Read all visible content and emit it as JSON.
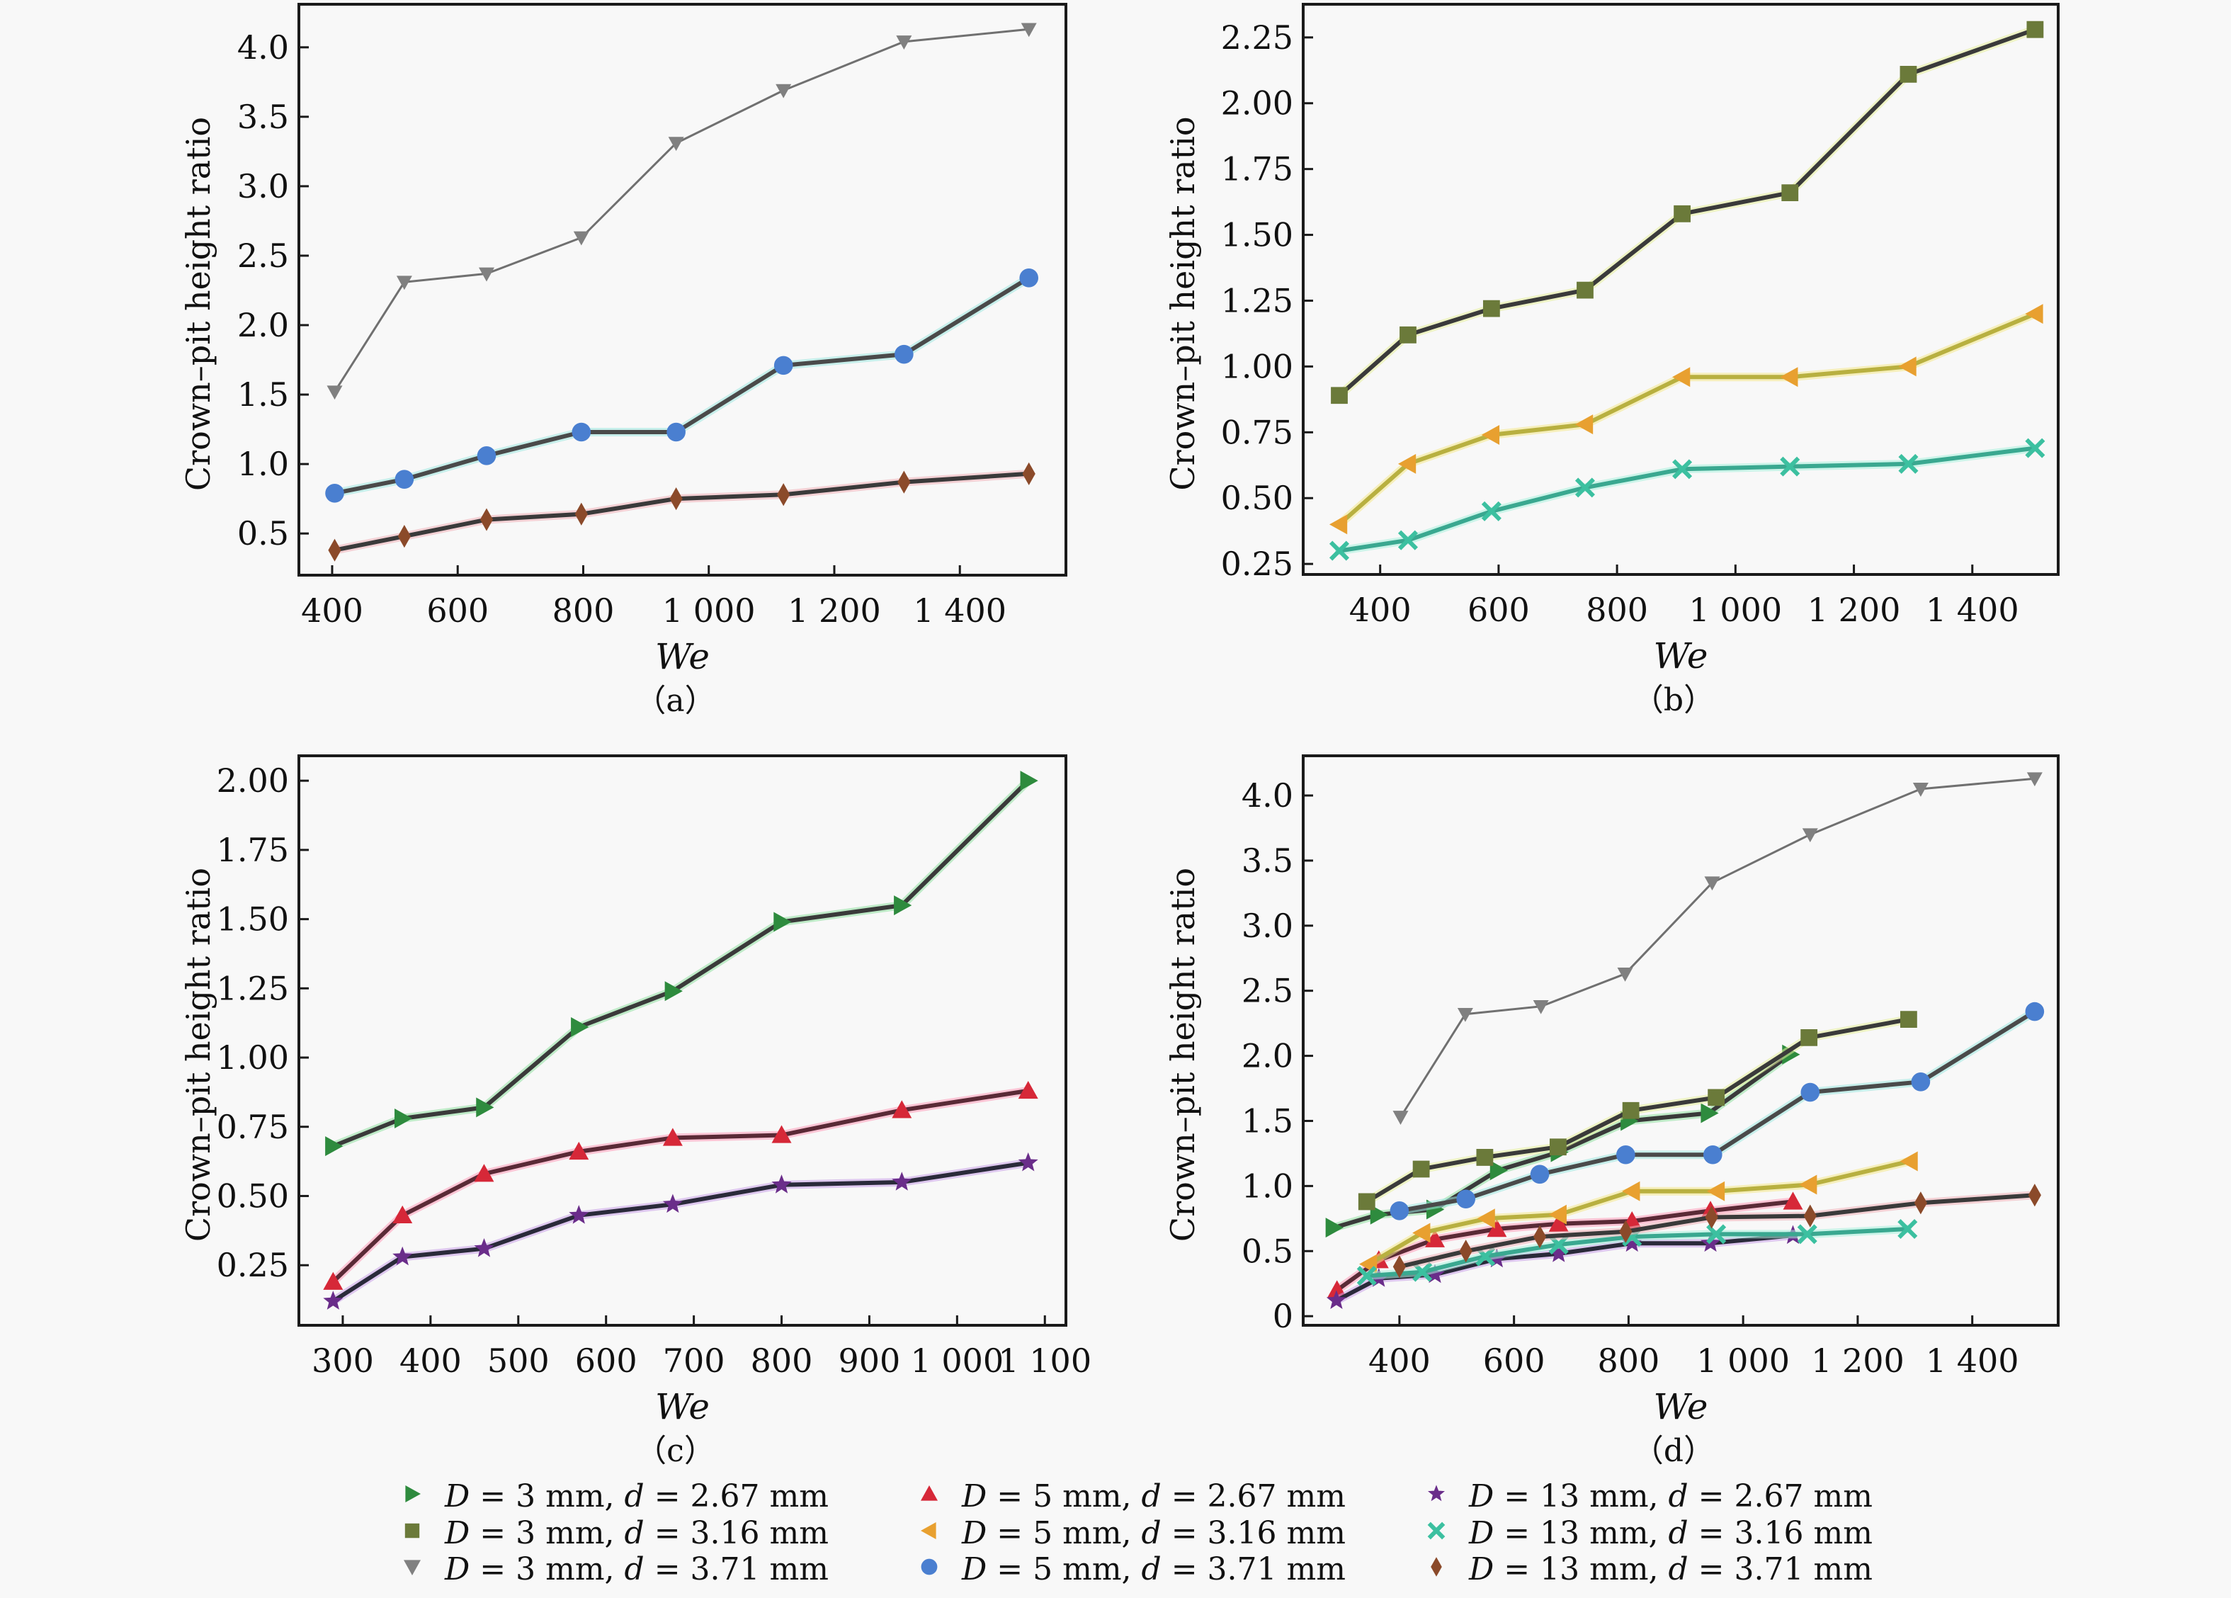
{
  "figure": {
    "legend": [
      {
        "key": "D3_d267",
        "D": "3",
        "d": "2.67",
        "marker": "triangle-right",
        "color": "#2e8b3e",
        "line": "#3a3a3a",
        "halo": "#8fe0a0"
      },
      {
        "key": "D3_d316",
        "D": "3",
        "d": "3.16",
        "marker": "square",
        "color": "#6b7a3a",
        "line": "#3a3a3a",
        "halo": "#e6ee9a"
      },
      {
        "key": "D3_d371",
        "D": "3",
        "d": "3.71",
        "marker": "triangle-down",
        "color": "#808080",
        "line": "#707070",
        "halo": "#dddddd"
      },
      {
        "key": "D5_d267",
        "D": "5",
        "d": "2.67",
        "marker": "triangle-up",
        "color": "#d62838",
        "line": "#5a2a36",
        "halo": "#ff9ab8"
      },
      {
        "key": "D5_d316",
        "D": "5",
        "d": "3.16",
        "marker": "triangle-left",
        "color": "#e8a030",
        "line": "#b8b040",
        "halo": "#f4e88a"
      },
      {
        "key": "D5_d371",
        "D": "5",
        "d": "3.71",
        "marker": "circle",
        "color": "#4a7fd0",
        "line": "#4a4a4a",
        "halo": "#9fe8e0"
      },
      {
        "key": "D13_d267",
        "D": "13",
        "d": "2.67",
        "marker": "star",
        "color": "#6a2d8a",
        "line": "#2a2a3a",
        "halo": "#c9a0e8"
      },
      {
        "key": "D13_d316",
        "D": "13",
        "d": "3.16",
        "marker": "x",
        "color": "#3cc0a0",
        "line": "#3aa890",
        "halo": "#a8f0dc"
      },
      {
        "key": "D13_d371",
        "D": "13",
        "d": "3.71",
        "marker": "diamond",
        "color": "#8b4a2a",
        "line": "#3a3a3a",
        "halo": "#f0b0b8"
      }
    ],
    "legend_text": {
      "D_symbol": "D",
      "d_symbol": "d",
      "equals": " = ",
      "unit": " mm",
      "separator": ", "
    }
  },
  "chart_data": [
    {
      "panel": "a",
      "type": "line",
      "title": "",
      "caption": "（a）",
      "xlabel": "We",
      "ylabel": "Crown–pit height ratio",
      "xlim": [
        347,
        1569
      ],
      "ylim": [
        0.2,
        4.31
      ],
      "xticks": [
        400,
        600,
        800,
        1000,
        1200,
        1400
      ],
      "xtick_labels": [
        "400",
        "600",
        "800",
        "1 000",
        "1 200",
        "1 400"
      ],
      "yticks": [
        0.5,
        1.0,
        1.5,
        2.0,
        2.5,
        3.0,
        3.5,
        4.0
      ],
      "ytick_labels": [
        "0.5",
        "1.0",
        "1.5",
        "2.0",
        "2.5",
        "3.0",
        "3.5",
        "4.0"
      ],
      "grid": false,
      "series": [
        {
          "key": "D3_d371",
          "name": "D = 3 mm, d = 3.71 mm",
          "x": [
            404,
            515,
            646,
            797,
            948,
            1119,
            1311,
            1510
          ],
          "y": [
            1.52,
            2.31,
            2.37,
            2.63,
            3.31,
            3.69,
            4.04,
            4.13
          ]
        },
        {
          "key": "D5_d371",
          "name": "D = 5 mm, d = 3.71 mm",
          "x": [
            404,
            515,
            646,
            797,
            948,
            1119,
            1311,
            1510
          ],
          "y": [
            0.79,
            0.89,
            1.06,
            1.23,
            1.23,
            1.71,
            1.79,
            2.34
          ]
        },
        {
          "key": "D13_d371",
          "name": "D = 13 mm, d = 3.71 mm",
          "x": [
            404,
            515,
            646,
            797,
            948,
            1119,
            1311,
            1510
          ],
          "y": [
            0.38,
            0.48,
            0.6,
            0.64,
            0.75,
            0.78,
            0.87,
            0.93
          ]
        }
      ]
    },
    {
      "panel": "b",
      "type": "line",
      "title": "",
      "caption": "（b）",
      "xlabel": "We",
      "ylabel": "Crown–pit height ratio",
      "xlim": [
        270,
        1545
      ],
      "ylim": [
        0.21,
        2.376
      ],
      "xticks": [
        400,
        600,
        800,
        1000,
        1200,
        1400
      ],
      "xtick_labels": [
        "400",
        "600",
        "800",
        "1 000",
        "1 200",
        "1 400"
      ],
      "yticks": [
        0.25,
        0.5,
        0.75,
        1.0,
        1.25,
        1.5,
        1.75,
        2.0,
        2.25
      ],
      "ytick_labels": [
        "0.25",
        "0.50",
        "0.75",
        "1.00",
        "1.25",
        "1.50",
        "1.75",
        "2.00",
        "2.25"
      ],
      "grid": false,
      "series": [
        {
          "key": "D3_d316",
          "name": "D = 3 mm, d = 3.16 mm",
          "x": [
            331,
            447,
            588,
            746,
            910,
            1092,
            1292,
            1506
          ],
          "y": [
            0.89,
            1.12,
            1.22,
            1.29,
            1.58,
            1.66,
            2.11,
            2.28
          ]
        },
        {
          "key": "D5_d316",
          "name": "D = 5 mm, d = 3.16 mm",
          "x": [
            331,
            447,
            588,
            746,
            910,
            1092,
            1292,
            1506
          ],
          "y": [
            0.4,
            0.63,
            0.74,
            0.78,
            0.96,
            0.96,
            1.0,
            1.2
          ]
        },
        {
          "key": "D13_d316",
          "name": "D = 13 mm, d = 3.16 mm",
          "x": [
            331,
            447,
            588,
            746,
            910,
            1092,
            1292,
            1506
          ],
          "y": [
            0.3,
            0.34,
            0.45,
            0.54,
            0.61,
            0.62,
            0.63,
            0.69
          ]
        }
      ]
    },
    {
      "panel": "c",
      "type": "line",
      "title": "",
      "caption": "（c）",
      "xlabel": "We",
      "ylabel": "Crown–pit height ratio",
      "xlim": [
        250,
        1124
      ],
      "ylim": [
        0.033,
        2.09
      ],
      "xticks": [
        300,
        400,
        500,
        600,
        700,
        800,
        900,
        1000,
        1100
      ],
      "xtick_labels": [
        "300",
        "400",
        "500",
        "600",
        "700",
        "800",
        "900",
        "1 000",
        "1 100"
      ],
      "yticks": [
        0.25,
        0.5,
        0.75,
        1.0,
        1.25,
        1.5,
        1.75,
        2.0
      ],
      "ytick_labels": [
        "0.25",
        "0.50",
        "0.75",
        "1.00",
        "1.25",
        "1.50",
        "1.75",
        "2.00"
      ],
      "grid": false,
      "series": [
        {
          "key": "D3_d267",
          "name": "D = 3 mm, d = 2.67 mm",
          "x": [
            289,
            368,
            461,
            569,
            676,
            800,
            937,
            1081
          ],
          "y": [
            0.68,
            0.78,
            0.82,
            1.11,
            1.24,
            1.49,
            1.55,
            2.0
          ]
        },
        {
          "key": "D5_d267",
          "name": "D = 5 mm, d = 2.67 mm",
          "x": [
            289,
            368,
            461,
            569,
            676,
            800,
            937,
            1081
          ],
          "y": [
            0.19,
            0.43,
            0.58,
            0.66,
            0.71,
            0.72,
            0.81,
            0.88
          ]
        },
        {
          "key": "D13_d267",
          "name": "D = 13 mm, d = 2.67 mm",
          "x": [
            289,
            368,
            461,
            569,
            676,
            800,
            937,
            1081
          ],
          "y": [
            0.12,
            0.28,
            0.31,
            0.43,
            0.47,
            0.54,
            0.55,
            0.62
          ]
        }
      ]
    },
    {
      "panel": "d",
      "type": "line",
      "title": "",
      "caption": "（d）",
      "xlabel": "We",
      "ylabel": "Crown–pit height ratio",
      "xlim": [
        232,
        1550
      ],
      "ylim": [
        -0.07,
        4.305
      ],
      "xticks": [
        400,
        600,
        800,
        1000,
        1200,
        1400
      ],
      "xtick_labels": [
        "400",
        "600",
        "800",
        "1 000",
        "1 200",
        "1 400"
      ],
      "yticks": [
        0,
        0.5,
        1.0,
        1.5,
        2.0,
        2.5,
        3.0,
        3.5,
        4.0
      ],
      "ytick_labels": [
        "0",
        "0.5",
        "1.0",
        "1.5",
        "2.0",
        "2.5",
        "3.0",
        "3.5",
        "4.0"
      ],
      "grid": false,
      "series": [
        {
          "key": "D3_d267",
          "name": "D = 3 mm, d = 2.67 mm",
          "x": [
            285,
            363,
            461,
            572,
            678,
            800,
            940,
            1082
          ],
          "y": [
            0.68,
            0.78,
            0.82,
            1.12,
            1.26,
            1.5,
            1.56,
            2.01
          ]
        },
        {
          "key": "D3_d316",
          "name": "D = 3 mm, d = 3.16 mm",
          "x": [
            343,
            438,
            549,
            677,
            804,
            953,
            1115,
            1289
          ],
          "y": [
            0.88,
            1.13,
            1.22,
            1.3,
            1.58,
            1.68,
            2.14,
            2.28
          ]
        },
        {
          "key": "D3_d371",
          "name": "D = 3 mm, d = 3.71 mm",
          "x": [
            402,
            515,
            647,
            794,
            946,
            1117,
            1310,
            1509
          ],
          "y": [
            1.53,
            2.32,
            2.38,
            2.63,
            3.33,
            3.7,
            4.05,
            4.13
          ]
        },
        {
          "key": "D5_d267",
          "name": "D = 5 mm, d = 2.67 mm",
          "x": [
            291,
            364,
            462,
            570,
            678,
            806,
            943,
            1087
          ],
          "y": [
            0.2,
            0.43,
            0.59,
            0.67,
            0.71,
            0.73,
            0.81,
            0.88
          ]
        },
        {
          "key": "D5_d316",
          "name": "D = 5 mm, d = 3.16 mm",
          "x": [
            347,
            440,
            553,
            678,
            806,
            954,
            1115,
            1291
          ],
          "y": [
            0.4,
            0.64,
            0.75,
            0.78,
            0.96,
            0.96,
            1.01,
            1.19
          ]
        },
        {
          "key": "D5_d371",
          "name": "D = 5 mm, d = 3.71 mm",
          "x": [
            400,
            516,
            645,
            795,
            947,
            1117,
            1310,
            1509
          ],
          "y": [
            0.81,
            0.9,
            1.09,
            1.24,
            1.24,
            1.72,
            1.8,
            2.34
          ]
        },
        {
          "key": "D13_d267",
          "name": "D = 13 mm, d = 2.67 mm",
          "x": [
            290,
            364,
            462,
            570,
            678,
            806,
            943,
            1087
          ],
          "y": [
            0.12,
            0.29,
            0.32,
            0.44,
            0.48,
            0.56,
            0.56,
            0.62
          ]
        },
        {
          "key": "D13_d316",
          "name": "D = 13 mm, d = 3.16 mm",
          "x": [
            343,
            440,
            550,
            678,
            806,
            953,
            1112,
            1287
          ],
          "y": [
            0.31,
            0.34,
            0.46,
            0.55,
            0.61,
            0.63,
            0.63,
            0.67
          ]
        },
        {
          "key": "D13_d371",
          "name": "D = 13 mm, d = 3.71 mm",
          "x": [
            400,
            516,
            645,
            795,
            945,
            1117,
            1310,
            1509
          ],
          "y": [
            0.38,
            0.5,
            0.61,
            0.65,
            0.76,
            0.77,
            0.87,
            0.93
          ]
        }
      ]
    }
  ]
}
